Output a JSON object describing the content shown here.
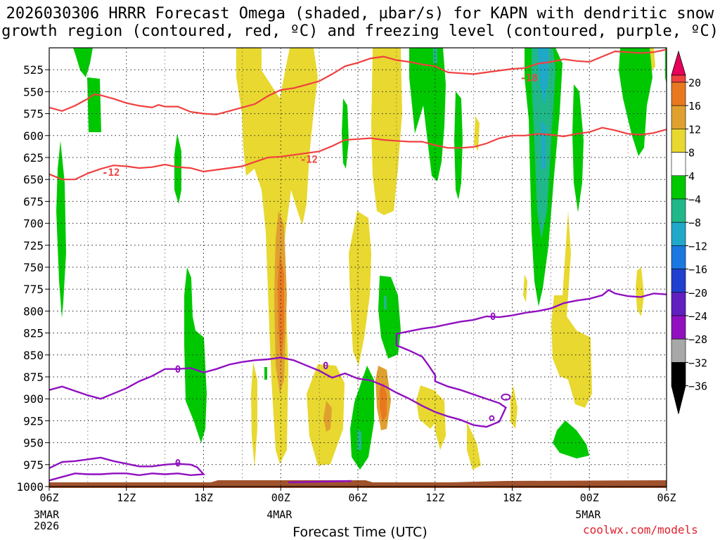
{
  "title": {
    "line1": "2026030306 HRRR Forecast Omega (shaded, µbar/s) for KAPN with dendritic snow",
    "line2": "growth region (contoured, red, ºC) and freezing level (contoured, purple, ºC)"
  },
  "credit": "coolwx.com/models",
  "chart_data": {
    "type": "heatmap",
    "xlabel": "Forecast Time (UTC)",
    "ylabel": "",
    "x_ticks": [
      "06Z",
      "12Z",
      "18Z",
      "00Z",
      "06Z",
      "12Z",
      "18Z",
      "00Z",
      "06Z"
    ],
    "x_range_hours": [
      0,
      48
    ],
    "date_labels": [
      {
        "hour": 0,
        "text": "3MAR"
      },
      {
        "hour": 0,
        "text": "2026",
        "second_line": true
      },
      {
        "hour": 18,
        "text": "4MAR"
      },
      {
        "hour": 42,
        "text": "5MAR"
      }
    ],
    "y_ticks": [
      525,
      550,
      575,
      600,
      625,
      650,
      675,
      700,
      725,
      750,
      775,
      800,
      825,
      850,
      875,
      900,
      925,
      950,
      975,
      1000
    ],
    "y_range_hpa": [
      500,
      1000
    ],
    "colorbar": {
      "labels": [
        "20",
        "16",
        "12",
        "8",
        "4",
        "−4",
        "−8",
        "−12",
        "−16",
        "−20",
        "−24",
        "−28",
        "−32",
        "−36"
      ],
      "colors": [
        "#e8005a",
        "#f04040",
        "#e87820",
        "#e0a030",
        "#e8d830",
        "#ffffff",
        "#00c800",
        "#20b888",
        "#20a8c8",
        "#1a78e0",
        "#2040d0",
        "#6020c0",
        "#9010c0",
        "#a8a8a8",
        "#000000"
      ]
    },
    "contours": {
      "dendritic_color": "#f04040",
      "freezing_color": "#9010c0",
      "labels": [
        {
          "text": "-12",
          "hour": 4.8,
          "p": 642
        },
        {
          "text": "-12",
          "hour": 20.2,
          "p": 627
        },
        {
          "text": "-18",
          "hour": 37.3,
          "p": 534
        },
        {
          "text": "0",
          "hour": 10.0,
          "p": 866
        },
        {
          "text": "0",
          "hour": 21.5,
          "p": 862
        },
        {
          "text": "0",
          "hour": 34.5,
          "p": 806
        },
        {
          "text": "0",
          "hour": 10.0,
          "p": 973
        }
      ],
      "dendritic_upper": [
        [
          0,
          568
        ],
        [
          1,
          572
        ],
        [
          2,
          566
        ],
        [
          3,
          558
        ],
        [
          3.5,
          553
        ],
        [
          4,
          554
        ],
        [
          5,
          558
        ],
        [
          6,
          563
        ],
        [
          7,
          566
        ],
        [
          8,
          568
        ],
        [
          8.5,
          565
        ],
        [
          9,
          567
        ],
        [
          10,
          567
        ],
        [
          11,
          573
        ],
        [
          12,
          575
        ],
        [
          13,
          576
        ],
        [
          14,
          572
        ],
        [
          15,
          568
        ],
        [
          16,
          564
        ],
        [
          17,
          555
        ],
        [
          18,
          548
        ],
        [
          19,
          546
        ],
        [
          20,
          542
        ],
        [
          21,
          538
        ],
        [
          22,
          530
        ],
        [
          23,
          521
        ],
        [
          24,
          517
        ],
        [
          25,
          512
        ],
        [
          26,
          510
        ],
        [
          27,
          514
        ],
        [
          28,
          516
        ],
        [
          29,
          519
        ],
        [
          30,
          521
        ],
        [
          31,
          528
        ],
        [
          32,
          529
        ],
        [
          33,
          530
        ],
        [
          34,
          528
        ],
        [
          35,
          526
        ],
        [
          36,
          524
        ],
        [
          37,
          523
        ],
        [
          38,
          518
        ],
        [
          39,
          516
        ],
        [
          40,
          513
        ],
        [
          41,
          515
        ],
        [
          42,
          516
        ],
        [
          43,
          510
        ],
        [
          44,
          504
        ],
        [
          45,
          505
        ],
        [
          46,
          506
        ],
        [
          47,
          505
        ],
        [
          48,
          502
        ]
      ],
      "dendritic_lower": [
        [
          0,
          644
        ],
        [
          1,
          650
        ],
        [
          2,
          650
        ],
        [
          3,
          643
        ],
        [
          4,
          638
        ],
        [
          5,
          634
        ],
        [
          6,
          635
        ],
        [
          7,
          637
        ],
        [
          8,
          636
        ],
        [
          9,
          633
        ],
        [
          10,
          636
        ],
        [
          11,
          637
        ],
        [
          12,
          641
        ],
        [
          13,
          639
        ],
        [
          14,
          637
        ],
        [
          15,
          635
        ],
        [
          16,
          630
        ],
        [
          17,
          625
        ],
        [
          18,
          624
        ],
        [
          19,
          622
        ],
        [
          20,
          620
        ],
        [
          21,
          618
        ],
        [
          22,
          612
        ],
        [
          23,
          605
        ],
        [
          24,
          604
        ],
        [
          25,
          603
        ],
        [
          26,
          605
        ],
        [
          27,
          606
        ],
        [
          28,
          607
        ],
        [
          29,
          607
        ],
        [
          30,
          611
        ],
        [
          31,
          614
        ],
        [
          32,
          614
        ],
        [
          33,
          613
        ],
        [
          34,
          609
        ],
        [
          35,
          603
        ],
        [
          36,
          600
        ],
        [
          37,
          600
        ],
        [
          38,
          598
        ],
        [
          39,
          599
        ],
        [
          40,
          601
        ],
        [
          41,
          598
        ],
        [
          42,
          596
        ],
        [
          43,
          591
        ],
        [
          44,
          594
        ],
        [
          45,
          598
        ],
        [
          46,
          599
        ],
        [
          47,
          597
        ],
        [
          48,
          593
        ]
      ],
      "freezing_upper": [
        [
          0,
          890
        ],
        [
          1,
          886
        ],
        [
          2,
          891
        ],
        [
          3,
          896
        ],
        [
          4,
          900
        ],
        [
          5,
          894
        ],
        [
          6,
          888
        ],
        [
          7,
          880
        ],
        [
          8,
          874
        ],
        [
          9,
          866
        ],
        [
          10,
          866
        ],
        [
          11,
          865
        ],
        [
          12,
          870
        ],
        [
          13,
          866
        ],
        [
          14,
          861
        ],
        [
          15,
          858
        ],
        [
          16,
          856
        ],
        [
          17,
          855
        ],
        [
          18,
          853
        ],
        [
          19,
          856
        ],
        [
          20,
          862
        ],
        [
          21,
          868
        ],
        [
          22,
          876
        ],
        [
          23,
          871
        ],
        [
          24,
          877
        ],
        [
          25,
          879
        ],
        [
          26,
          885
        ],
        [
          27,
          893
        ],
        [
          28,
          900
        ],
        [
          29,
          908
        ],
        [
          30,
          915
        ],
        [
          31,
          920
        ],
        [
          32,
          924
        ],
        [
          33,
          930
        ],
        [
          34,
          932
        ],
        [
          35,
          926
        ],
        [
          35.5,
          910
        ],
        [
          35,
          905
        ],
        [
          34,
          900
        ],
        [
          33,
          895
        ],
        [
          32,
          890
        ],
        [
          31,
          886
        ],
        [
          30,
          880
        ],
        [
          30,
          873
        ],
        [
          29.5,
          862
        ],
        [
          29,
          852
        ],
        [
          28,
          845
        ],
        [
          27,
          839
        ],
        [
          27,
          826
        ],
        [
          28,
          823
        ],
        [
          29,
          820
        ],
        [
          30,
          818
        ],
        [
          31,
          815
        ],
        [
          32,
          812
        ],
        [
          33,
          810
        ],
        [
          34,
          806
        ],
        [
          35,
          807
        ],
        [
          36,
          805
        ],
        [
          37,
          802
        ],
        [
          38,
          800
        ],
        [
          39,
          797
        ],
        [
          40,
          791
        ],
        [
          41,
          788
        ],
        [
          42,
          786
        ],
        [
          43,
          782
        ],
        [
          43.5,
          776
        ],
        [
          44,
          780
        ],
        [
          45,
          783
        ],
        [
          46,
          784
        ],
        [
          47,
          780
        ],
        [
          48,
          781
        ]
      ],
      "freezing_lower": [
        [
          0,
          979
        ],
        [
          1,
          972
        ],
        [
          2,
          971
        ],
        [
          3,
          969
        ],
        [
          4,
          967
        ],
        [
          5,
          971
        ],
        [
          6,
          974
        ],
        [
          7,
          977
        ],
        [
          8,
          977
        ],
        [
          9,
          975
        ],
        [
          10,
          974
        ],
        [
          11,
          975
        ],
        [
          11.5,
          978
        ],
        [
          12,
          986
        ],
        [
          11,
          987
        ],
        [
          10,
          985
        ],
        [
          9,
          986
        ],
        [
          8,
          985
        ],
        [
          7,
          987
        ],
        [
          6,
          985
        ],
        [
          5,
          985
        ],
        [
          4,
          986
        ],
        [
          3,
          986
        ],
        [
          2,
          985
        ],
        [
          1,
          989
        ],
        [
          0,
          993
        ]
      ]
    }
  }
}
